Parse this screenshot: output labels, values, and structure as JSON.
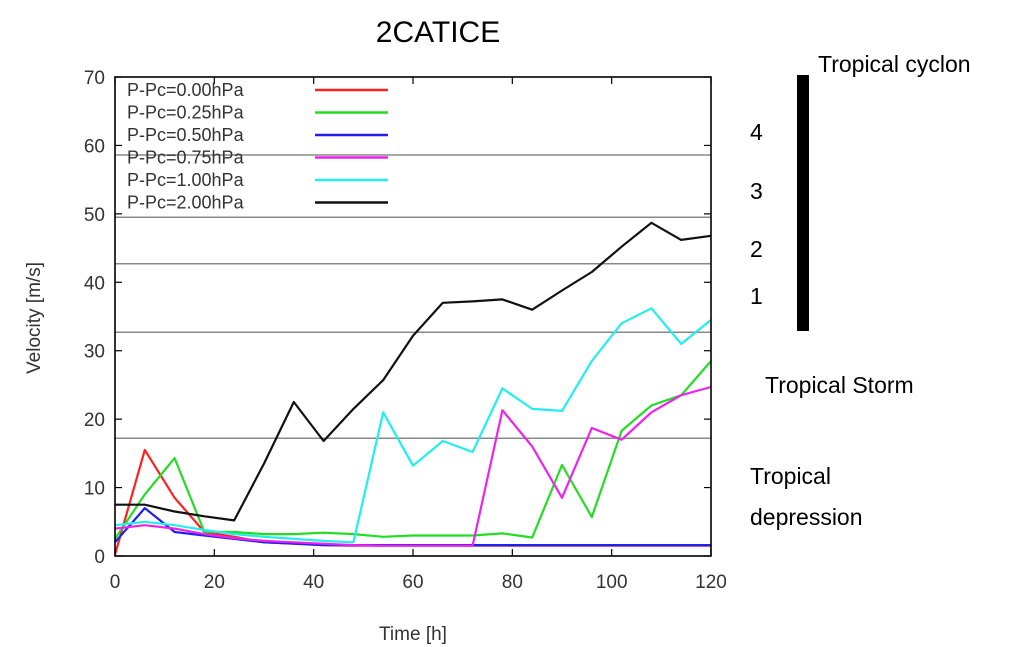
{
  "chart_data": {
    "type": "line",
    "title": "2CATICE",
    "xlabel": "Time [h]",
    "ylabel": "Velocity [m/s]",
    "xlim": [
      0,
      120
    ],
    "ylim": [
      0,
      70
    ],
    "xticks": [
      0,
      20,
      40,
      60,
      80,
      100,
      120
    ],
    "yticks": [
      0,
      10,
      20,
      30,
      40,
      50,
      60,
      70
    ],
    "grid": false,
    "legend_position": "top-left",
    "threshold_lines": [
      17.2,
      32.7,
      42.7,
      49.5,
      58.6
    ],
    "series": [
      {
        "name": "P-Pc=0.00hPa",
        "color": "#ff2020",
        "points": [
          [
            0,
            0.2
          ],
          [
            6,
            15.5
          ],
          [
            12,
            8.5
          ],
          [
            18,
            3.5
          ],
          [
            24,
            2.8
          ],
          [
            30,
            2
          ],
          [
            36,
            1.8
          ],
          [
            42,
            1.6
          ],
          [
            48,
            1.5
          ],
          [
            54,
            1.5
          ],
          [
            60,
            1.5
          ],
          [
            66,
            1.5
          ],
          [
            72,
            1.5
          ],
          [
            78,
            1.5
          ],
          [
            84,
            1.5
          ],
          [
            90,
            1.5
          ],
          [
            96,
            1.5
          ],
          [
            102,
            1.5
          ],
          [
            108,
            1.5
          ],
          [
            114,
            1.5
          ],
          [
            120,
            1.5
          ]
        ]
      },
      {
        "name": "P-Pc=0.25hPa",
        "color": "#22dd22",
        "points": [
          [
            0,
            2.5
          ],
          [
            6,
            9
          ],
          [
            12,
            14.3
          ],
          [
            18,
            3.5
          ],
          [
            24,
            3.5
          ],
          [
            30,
            3.2
          ],
          [
            36,
            3.2
          ],
          [
            42,
            3.4
          ],
          [
            48,
            3.2
          ],
          [
            54,
            2.8
          ],
          [
            60,
            3
          ],
          [
            66,
            3
          ],
          [
            72,
            3
          ],
          [
            78,
            3.3
          ],
          [
            84,
            2.7
          ],
          [
            90,
            13.3
          ],
          [
            96,
            5.7
          ],
          [
            102,
            18.3
          ],
          [
            108,
            22
          ],
          [
            114,
            23.5
          ],
          [
            120,
            28.5
          ]
        ]
      },
      {
        "name": "P-Pc=0.50hPa",
        "color": "#2020ee",
        "points": [
          [
            0,
            2
          ],
          [
            6,
            7
          ],
          [
            12,
            3.5
          ],
          [
            18,
            3
          ],
          [
            24,
            2.5
          ],
          [
            30,
            2
          ],
          [
            36,
            1.8
          ],
          [
            42,
            1.6
          ],
          [
            48,
            1.6
          ],
          [
            54,
            1.6
          ],
          [
            60,
            1.6
          ],
          [
            66,
            1.6
          ],
          [
            72,
            1.6
          ],
          [
            78,
            1.6
          ],
          [
            84,
            1.6
          ],
          [
            90,
            1.6
          ],
          [
            96,
            1.6
          ],
          [
            102,
            1.6
          ],
          [
            108,
            1.6
          ],
          [
            114,
            1.6
          ],
          [
            120,
            1.6
          ]
        ]
      },
      {
        "name": "P-Pc=0.75hPa",
        "color": "#ee22ee",
        "points": [
          [
            0,
            4
          ],
          [
            6,
            4.5
          ],
          [
            12,
            4
          ],
          [
            18,
            3.2
          ],
          [
            24,
            2.6
          ],
          [
            30,
            2.2
          ],
          [
            36,
            2
          ],
          [
            42,
            1.8
          ],
          [
            48,
            1.6
          ],
          [
            54,
            1.5
          ],
          [
            60,
            1.5
          ],
          [
            66,
            1.5
          ],
          [
            72,
            1.5
          ],
          [
            78,
            21.3
          ],
          [
            84,
            16
          ],
          [
            90,
            8.5
          ],
          [
            96,
            18.7
          ],
          [
            102,
            17
          ],
          [
            108,
            21
          ],
          [
            114,
            23.5
          ],
          [
            120,
            24.7
          ]
        ]
      },
      {
        "name": "P-Pc=1.00hPa",
        "color": "#22eeee",
        "points": [
          [
            0,
            4.5
          ],
          [
            6,
            5
          ],
          [
            12,
            4.5
          ],
          [
            18,
            3.8
          ],
          [
            24,
            3.2
          ],
          [
            30,
            2.8
          ],
          [
            36,
            2.5
          ],
          [
            42,
            2.2
          ],
          [
            48,
            2.0
          ],
          [
            54,
            21
          ],
          [
            60,
            13.2
          ],
          [
            66,
            16.8
          ],
          [
            72,
            15.2
          ],
          [
            78,
            24.5
          ],
          [
            84,
            21.5
          ],
          [
            90,
            21.2
          ],
          [
            96,
            28.5
          ],
          [
            102,
            34
          ],
          [
            108,
            36.2
          ],
          [
            114,
            31
          ],
          [
            120,
            34.5
          ]
        ]
      },
      {
        "name": "P-Pc=2.00hPa",
        "color": "#111111",
        "points": [
          [
            0,
            7.5
          ],
          [
            6,
            7.5
          ],
          [
            12,
            6.5
          ],
          [
            18,
            5.8
          ],
          [
            24,
            5.2
          ],
          [
            30,
            13.5
          ],
          [
            36,
            22.5
          ],
          [
            42,
            16.8
          ],
          [
            48,
            21.5
          ],
          [
            54,
            25.7
          ],
          [
            60,
            32.2
          ],
          [
            66,
            37
          ],
          [
            72,
            37.2
          ],
          [
            78,
            37.5
          ],
          [
            84,
            36
          ],
          [
            90,
            38.8
          ],
          [
            96,
            41.5
          ],
          [
            102,
            45.2
          ],
          [
            108,
            48.7
          ],
          [
            114,
            46.2
          ],
          [
            120,
            46.8
          ]
        ]
      }
    ]
  },
  "annotations": {
    "tropical_cyclone": "Tropical cyclon",
    "cat4": "4",
    "cat3": "3",
    "cat2": "2",
    "cat1": "1",
    "tropical_storm": "Tropical Storm",
    "tropical_depression_line1": "Tropical",
    "tropical_depression_line2": "depression"
  }
}
